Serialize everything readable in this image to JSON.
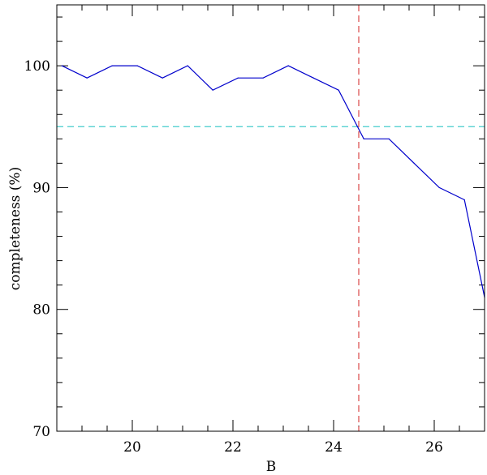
{
  "chart_data": {
    "type": "line",
    "title": "",
    "xlabel": "B",
    "ylabel": "completeness (%)",
    "xlim": [
      18.5,
      27.0
    ],
    "ylim": [
      70,
      105
    ],
    "x_major_ticks": [
      20,
      22,
      24,
      26
    ],
    "y_major_ticks": [
      70,
      80,
      90,
      100
    ],
    "x_tick_labels": [
      "20",
      "22",
      "24",
      "26"
    ],
    "y_tick_labels": [
      "70",
      "80",
      "90",
      "100"
    ],
    "x_minor_step": 0.5,
    "y_minor_step": 2,
    "grid": false,
    "series": [
      {
        "color": "#0000cc",
        "x": [
          18.6,
          19.1,
          19.6,
          20.1,
          20.6,
          21.1,
          21.6,
          22.1,
          22.6,
          23.1,
          23.6,
          24.1,
          24.6,
          25.1,
          25.6,
          26.1,
          26.6,
          27.0
        ],
        "y": [
          100,
          99,
          100,
          100,
          99,
          100,
          98,
          99,
          99,
          100,
          99,
          98,
          94,
          94,
          92,
          90,
          89,
          81
        ]
      }
    ],
    "reference_lines": [
      {
        "orientation": "horizontal",
        "value": 95,
        "color": "#44cccc",
        "style": "dashed"
      },
      {
        "orientation": "vertical",
        "value": 24.5,
        "color": "#dd5555",
        "style": "dashed"
      }
    ]
  }
}
